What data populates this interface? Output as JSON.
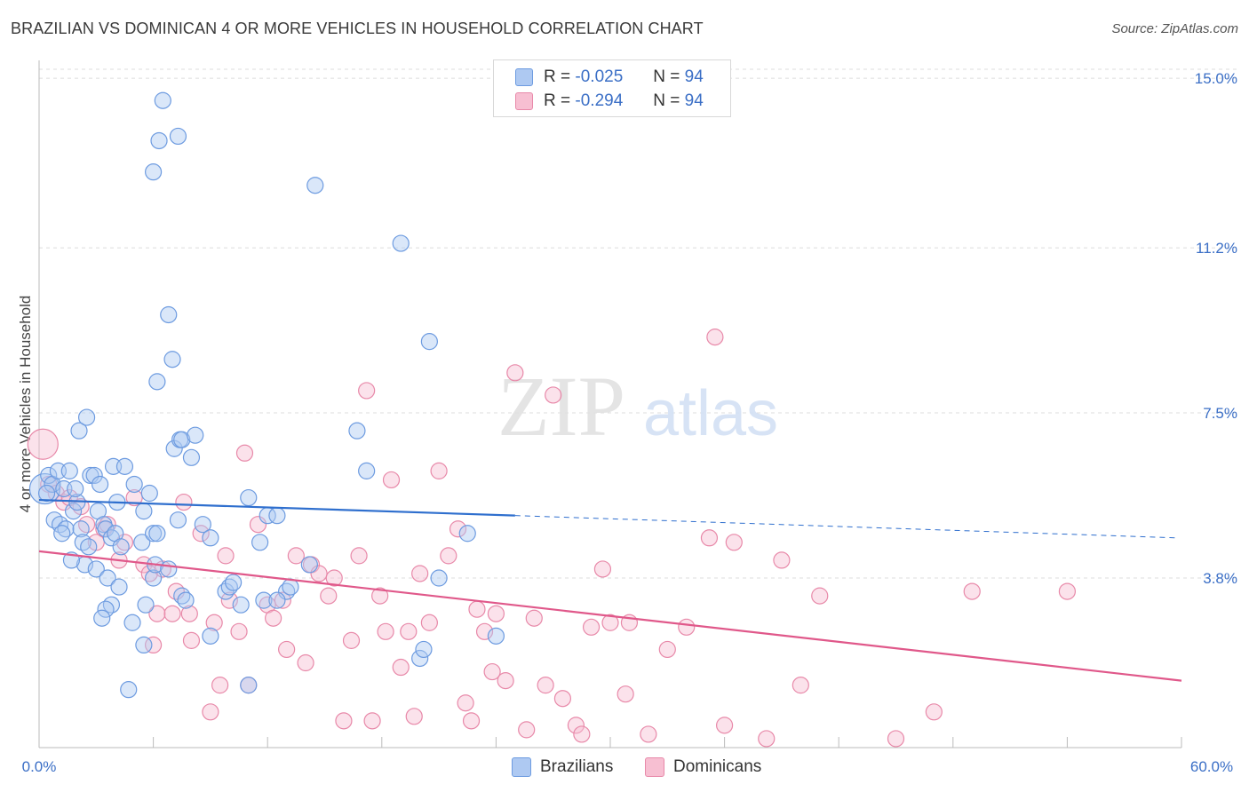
{
  "title": "BRAZILIAN VS DOMINICAN 4 OR MORE VEHICLES IN HOUSEHOLD CORRELATION CHART",
  "source": "Source: ZipAtlas.com",
  "watermark": {
    "zip": "ZIP",
    "atlas": "atlas"
  },
  "legend": {
    "r_label": "R =",
    "n_label": "N =",
    "rows": [
      {
        "name": "Brazilians",
        "r": "-0.025",
        "n": "94",
        "fill": "#aec9f2",
        "stroke": "#6d9be0"
      },
      {
        "name": "Dominicans",
        "r": "-0.294",
        "n": "94",
        "fill": "#f7bfd2",
        "stroke": "#e889a9"
      }
    ]
  },
  "bottom_legend": [
    "Brazilians",
    "Dominicans"
  ],
  "chart_data": {
    "type": "scatter",
    "title": "BRAZILIAN VS DOMINICAN 4 OR MORE VEHICLES IN HOUSEHOLD CORRELATION CHART",
    "xlabel": "",
    "ylabel": "4 or more Vehicles in Household",
    "xlim": [
      0,
      60
    ],
    "ylim": [
      0,
      15.4
    ],
    "x_tick_labels": [
      "0.0%",
      "60.0%"
    ],
    "y_ticks": [
      3.8,
      7.5,
      11.2,
      15.0
    ],
    "y_tick_labels": [
      "3.8%",
      "7.5%",
      "11.2%",
      "15.0%"
    ],
    "grid": true,
    "series": [
      {
        "name": "Brazilians",
        "color": "#6d9be0",
        "fill": "#aec9f2",
        "trend": {
          "x0": 0,
          "y0": 5.55,
          "x1": 25,
          "y1": 5.2,
          "dashed_to_x": 60,
          "dashed_to_y": 4.7,
          "color": "#2f6fce"
        },
        "points": [
          [
            0.3,
            5.8
          ],
          [
            0.5,
            6.1
          ],
          [
            0.7,
            5.9
          ],
          [
            1.0,
            6.2
          ],
          [
            1.3,
            5.8
          ],
          [
            1.6,
            6.2
          ],
          [
            0.4,
            5.7
          ],
          [
            0.8,
            5.1
          ],
          [
            1.1,
            5.0
          ],
          [
            1.4,
            4.9
          ],
          [
            1.2,
            4.8
          ],
          [
            1.8,
            5.3
          ],
          [
            2.0,
            5.5
          ],
          [
            1.9,
            5.8
          ],
          [
            2.2,
            4.9
          ],
          [
            2.3,
            4.6
          ],
          [
            2.4,
            4.1
          ],
          [
            2.6,
            4.5
          ],
          [
            2.7,
            6.1
          ],
          [
            2.9,
            6.1
          ],
          [
            2.1,
            7.1
          ],
          [
            2.5,
            7.4
          ],
          [
            1.7,
            4.2
          ],
          [
            3.0,
            4.0
          ],
          [
            3.2,
            5.9
          ],
          [
            3.1,
            5.3
          ],
          [
            3.4,
            5.0
          ],
          [
            3.5,
            4.9
          ],
          [
            3.6,
            3.8
          ],
          [
            3.8,
            4.7
          ],
          [
            4.0,
            4.8
          ],
          [
            3.9,
            6.3
          ],
          [
            4.3,
            4.5
          ],
          [
            4.5,
            6.3
          ],
          [
            5.0,
            5.9
          ],
          [
            5.4,
            4.6
          ],
          [
            5.8,
            5.7
          ],
          [
            6.0,
            4.8
          ],
          [
            6.2,
            4.8
          ],
          [
            6.0,
            3.8
          ],
          [
            5.6,
            3.2
          ],
          [
            4.2,
            3.6
          ],
          [
            3.8,
            3.2
          ],
          [
            3.5,
            3.1
          ],
          [
            3.3,
            2.9
          ],
          [
            4.9,
            2.8
          ],
          [
            4.7,
            1.3
          ],
          [
            5.5,
            2.3
          ],
          [
            6.1,
            4.1
          ],
          [
            6.8,
            4.0
          ],
          [
            6.2,
            8.2
          ],
          [
            6.8,
            9.7
          ],
          [
            7.0,
            8.7
          ],
          [
            7.1,
            6.7
          ],
          [
            7.4,
            6.9
          ],
          [
            7.3,
            5.1
          ],
          [
            7.5,
            3.4
          ],
          [
            7.7,
            3.3
          ],
          [
            8.0,
            6.5
          ],
          [
            7.5,
            6.9
          ],
          [
            8.2,
            7.0
          ],
          [
            8.6,
            5.0
          ],
          [
            9.0,
            4.7
          ],
          [
            9.0,
            2.5
          ],
          [
            9.8,
            3.5
          ],
          [
            10.0,
            3.6
          ],
          [
            10.2,
            3.7
          ],
          [
            10.6,
            3.2
          ],
          [
            11.0,
            5.6
          ],
          [
            11.0,
            1.4
          ],
          [
            11.6,
            4.6
          ],
          [
            11.8,
            3.3
          ],
          [
            12.0,
            5.2
          ],
          [
            12.5,
            5.2
          ],
          [
            13.0,
            3.5
          ],
          [
            13.2,
            3.6
          ],
          [
            12.5,
            3.3
          ],
          [
            14.2,
            4.1
          ],
          [
            14.5,
            12.6
          ],
          [
            16.7,
            7.1
          ],
          [
            17.2,
            6.2
          ],
          [
            19.0,
            11.3
          ],
          [
            20.0,
            2.0
          ],
          [
            20.2,
            2.2
          ],
          [
            20.5,
            9.1
          ],
          [
            21.0,
            3.8
          ],
          [
            22.5,
            4.8
          ],
          [
            24.0,
            2.5
          ],
          [
            6.0,
            12.9
          ],
          [
            6.3,
            13.6
          ],
          [
            6.5,
            14.5
          ],
          [
            7.3,
            13.7
          ],
          [
            5.5,
            5.3
          ],
          [
            4.1,
            5.5
          ]
        ]
      },
      {
        "name": "Dominicans",
        "color": "#e889a9",
        "fill": "#f7bfd2",
        "trend": {
          "x0": 0,
          "y0": 4.4,
          "x1": 60,
          "y1": 1.5,
          "color": "#e0588a"
        },
        "points": [
          [
            0.2,
            6.8
          ],
          [
            0.5,
            5.9
          ],
          [
            0.9,
            5.7
          ],
          [
            1.3,
            5.5
          ],
          [
            1.6,
            5.6
          ],
          [
            2.2,
            5.4
          ],
          [
            2.5,
            5.0
          ],
          [
            3.0,
            4.6
          ],
          [
            3.4,
            4.9
          ],
          [
            3.6,
            5.0
          ],
          [
            4.2,
            4.2
          ],
          [
            4.5,
            4.6
          ],
          [
            5.0,
            5.6
          ],
          [
            5.5,
            4.1
          ],
          [
            5.8,
            3.9
          ],
          [
            6.2,
            3.0
          ],
          [
            6.0,
            2.3
          ],
          [
            6.5,
            4.0
          ],
          [
            7.0,
            3.0
          ],
          [
            7.2,
            3.5
          ],
          [
            7.6,
            5.5
          ],
          [
            7.9,
            3.0
          ],
          [
            8.0,
            2.4
          ],
          [
            8.5,
            4.8
          ],
          [
            9.0,
            0.8
          ],
          [
            9.2,
            2.8
          ],
          [
            9.5,
            1.4
          ],
          [
            9.8,
            4.3
          ],
          [
            10.0,
            3.3
          ],
          [
            10.5,
            2.6
          ],
          [
            10.8,
            6.6
          ],
          [
            11.0,
            1.4
          ],
          [
            11.5,
            5.0
          ],
          [
            12.0,
            3.2
          ],
          [
            12.3,
            2.9
          ],
          [
            12.8,
            3.3
          ],
          [
            13.0,
            2.2
          ],
          [
            13.5,
            4.3
          ],
          [
            14.0,
            1.9
          ],
          [
            14.3,
            4.1
          ],
          [
            14.7,
            3.9
          ],
          [
            15.2,
            3.4
          ],
          [
            15.5,
            3.8
          ],
          [
            16.0,
            0.6
          ],
          [
            16.4,
            2.4
          ],
          [
            16.8,
            4.3
          ],
          [
            17.2,
            8.0
          ],
          [
            17.5,
            0.6
          ],
          [
            17.9,
            3.4
          ],
          [
            18.2,
            2.6
          ],
          [
            18.5,
            6.0
          ],
          [
            19.0,
            1.8
          ],
          [
            19.4,
            2.6
          ],
          [
            19.7,
            0.7
          ],
          [
            20.0,
            3.9
          ],
          [
            20.5,
            2.8
          ],
          [
            21.0,
            6.2
          ],
          [
            21.5,
            4.3
          ],
          [
            22.0,
            4.9
          ],
          [
            22.4,
            1.0
          ],
          [
            22.7,
            0.6
          ],
          [
            23.0,
            3.1
          ],
          [
            23.4,
            2.6
          ],
          [
            23.8,
            1.7
          ],
          [
            24.0,
            3.0
          ],
          [
            24.5,
            1.5
          ],
          [
            25.0,
            8.4
          ],
          [
            25.6,
            0.4
          ],
          [
            26.0,
            2.9
          ],
          [
            26.6,
            1.4
          ],
          [
            27.0,
            7.9
          ],
          [
            27.5,
            1.1
          ],
          [
            28.2,
            0.5
          ],
          [
            28.5,
            0.3
          ],
          [
            29.0,
            2.7
          ],
          [
            29.6,
            4.0
          ],
          [
            30.0,
            2.8
          ],
          [
            30.8,
            1.2
          ],
          [
            31.0,
            2.8
          ],
          [
            32.0,
            0.3
          ],
          [
            33.0,
            2.2
          ],
          [
            34.0,
            2.7
          ],
          [
            35.2,
            4.7
          ],
          [
            35.5,
            9.2
          ],
          [
            36.0,
            0.5
          ],
          [
            36.5,
            4.6
          ],
          [
            38.2,
            0.2
          ],
          [
            39.0,
            4.2
          ],
          [
            40.0,
            1.4
          ],
          [
            41.0,
            3.4
          ],
          [
            45.0,
            0.2
          ],
          [
            47.0,
            0.8
          ],
          [
            49.0,
            3.5
          ],
          [
            54.0,
            3.5
          ]
        ]
      }
    ]
  }
}
